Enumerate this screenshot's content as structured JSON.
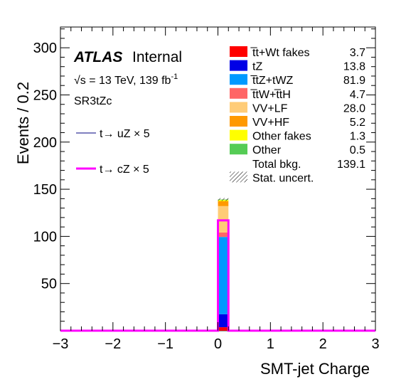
{
  "chart_data": {
    "type": "bar",
    "xlabel": "SMT-jet Charge",
    "ylabel": "Events / 0.2",
    "xlim": [
      -3,
      3
    ],
    "ylim": [
      0,
      322
    ],
    "bin_width": 0.2,
    "x_ticks": [
      "−3",
      "−2",
      "−1",
      "0",
      "1",
      "2",
      "3"
    ],
    "y_ticks": [
      "50",
      "100",
      "150",
      "200",
      "250",
      "300"
    ],
    "y_tick_values": [
      50,
      100,
      150,
      200,
      250,
      300
    ],
    "x_tick_values": [
      -3,
      -2,
      -1,
      0,
      1,
      2,
      3
    ],
    "bin": [
      0.0,
      0.2
    ],
    "stack": [
      {
        "name": "t̅t+Wt fakes",
        "value": 3.7,
        "color": "#ff0000"
      },
      {
        "name": "tZ",
        "value": 13.8,
        "color": "#0000e6"
      },
      {
        "name": "t̅tZ+tWZ",
        "value": 81.9,
        "color": "#0099ff"
      },
      {
        "name": "t̅tW+t̅tH",
        "value": 4.7,
        "color": "#ff6666"
      },
      {
        "name": "VV+LF",
        "value": 28.0,
        "color": "#ffcc77"
      },
      {
        "name": "VV+HF",
        "value": 5.2,
        "color": "#ff9900"
      },
      {
        "name": "Other fakes",
        "value": 1.3,
        "color": "#ffff00"
      },
      {
        "name": "Other",
        "value": 0.5,
        "color": "#55cc55"
      }
    ],
    "total_bkg": {
      "label": "Total bkg.",
      "value": "139.1"
    },
    "stat_uncert": {
      "label": "Stat. uncert.",
      "value": 1.5
    },
    "signals": [
      {
        "name": "t→ uZ × 5",
        "value": 117,
        "color": "#000080"
      },
      {
        "name": "t→ cZ × 5",
        "value": 117,
        "color": "#ff00ff"
      }
    ]
  },
  "text": {
    "atlas": "ATLAS",
    "internal": "Internal",
    "energy": "√s = 13 TeV, 139 fb",
    "energy_sup": "-1",
    "region": "SR3tZc",
    "legend_values": [
      "3.7",
      "13.8",
      "81.9",
      "4.7",
      "28.0",
      "5.2",
      "1.3",
      "0.5",
      "139.1"
    ]
  }
}
